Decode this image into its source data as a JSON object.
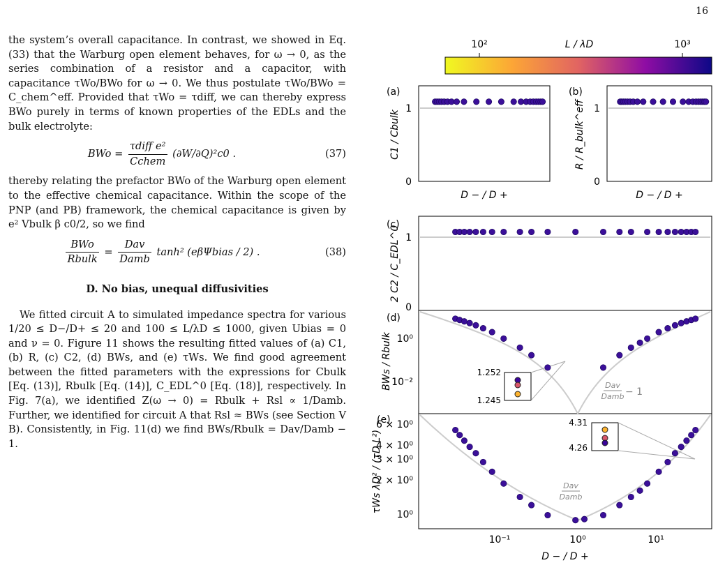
{
  "page_number": "16",
  "para1": "the system’s overall capacitance. In contrast, we showed in Eq. (33) that the Warburg open element behaves, for ω → 0, as the series combination of a resistor and a capacitor, with capacitance τWo/BWo for ω → 0. We thus postulate τWo/BWo = C_chem^eff. Provided that τWo = τdiff, we can thereby express BWo purely in terms of known properties of the EDLs and the bulk electrolyte:",
  "eq37": {
    "lhs": "BWo =",
    "num": "τdiff e²",
    "den": "Cchem",
    "rhs": "(∂W/∂Q)²c0 .",
    "number": "(37)"
  },
  "para2": "thereby relating the prefactor BWo of the Warburg open element to the effective chemical capacitance. Within the scope of the PNP (and PB) framework, the chemical capacitance is given by e² Vbulk β c0/2, so we find",
  "eq38": {
    "lnum": "BWo",
    "lden": "Rbulk",
    "mid": "=",
    "rnum": "Dav",
    "rden": "Damb",
    "rhs": "tanh² (eβΨbias / 2) .",
    "number": "(38)"
  },
  "section_title": "D.   No bias, unequal diffusivities",
  "para3": "We fitted circuit A to simulated impedance spectra for various 1/20 ≤ D−/D+ ≤ 20 and 100 ≤ L/λD ≤ 1000, given Ubias = 0 and ν = 0. Figure 11 shows the resulting fitted values of (a) C1, (b) R, (c) C2, (d) BWs, and (e) τWs. We find good agreement between the fitted parameters with the expressions for Cbulk [Eq. (13)], Rbulk [Eq. (14)], C_EDL^0 [Eq. (18)], respectively. In Fig. 7(a), we identified Z(ω → 0) = Rbulk + Rsl ∝ 1/Damb. Further, we identified for circuit A that Rsl ≈ BWs (see Section V B). Consistently, in Fig. 11(d) we find BWs/Rbulk = Dav/Damb − 1.",
  "colorbar": {
    "label": "L / λD",
    "tick_low": "10²",
    "tick_high": "10³"
  },
  "panels": {
    "a": {
      "label": "(a)",
      "ylabel": "C1 / Cbulk",
      "xlabel": "D − / D +",
      "yticks": [
        "0",
        "1"
      ]
    },
    "b": {
      "label": "(b)",
      "ylabel": "R / R_bulk^eff",
      "xlabel": "D − / D +",
      "yticks": [
        "0",
        "1"
      ]
    },
    "c": {
      "label": "(c)",
      "ylabel": "2 C2 / C_EDL^0",
      "yticks": [
        "0",
        "1"
      ]
    },
    "d": {
      "label": "(d)",
      "ylabel": "BWs / Rbulk",
      "yticks": [
        "10⁰",
        "10⁻²"
      ],
      "inset_top": "1.252",
      "inset_bottom": "1.245",
      "curve_label_num": "Dav",
      "curve_label_den": "Damb",
      "curve_label_suffix": "− 1"
    },
    "e": {
      "label": "(e)",
      "ylabel": "τWs λD² / (τD L²)",
      "yticks": [
        "6 × 10⁰",
        "4 × 10⁰",
        "3 × 10⁰",
        "2 × 10⁰",
        "10⁰"
      ],
      "inset_top": "4.31",
      "inset_bottom": "4.26",
      "curve_label_num": "Dav",
      "curve_label_den": "Damb"
    }
  },
  "x_axis": {
    "label": "D − / D +",
    "ticks": [
      "10⁻¹",
      "10⁰",
      "10¹"
    ]
  },
  "chart_data": [
    {
      "type": "scatter",
      "panel": "a",
      "xscale": "log",
      "x": [
        0.05,
        0.0556,
        0.0625,
        0.0714,
        0.0833,
        0.1,
        0.125,
        0.1667,
        0.25,
        0.5,
        1,
        2,
        4,
        6,
        8,
        10,
        12,
        14,
        16,
        18,
        20
      ],
      "y": [
        1,
        1,
        1,
        1,
        1,
        1,
        1,
        1,
        1,
        1,
        1,
        1,
        1,
        1,
        1,
        1,
        1,
        1,
        1,
        1,
        1
      ],
      "ylim": [
        0,
        1.2
      ]
    },
    {
      "type": "scatter",
      "panel": "b",
      "xscale": "log",
      "x": [
        0.05,
        0.0556,
        0.0625,
        0.0714,
        0.0833,
        0.1,
        0.125,
        0.1667,
        0.25,
        0.5,
        1,
        2,
        4,
        6,
        8,
        10,
        12,
        14,
        16,
        18,
        20
      ],
      "y": [
        1,
        1,
        1,
        1,
        1,
        1,
        1,
        1,
        1,
        1,
        1,
        1,
        1,
        1,
        1,
        1,
        1,
        1,
        1,
        1,
        1
      ],
      "ylim": [
        0,
        1.2
      ]
    },
    {
      "type": "scatter",
      "panel": "c",
      "xscale": "log",
      "x": [
        0.05,
        0.0556,
        0.0625,
        0.0714,
        0.0833,
        0.1,
        0.125,
        0.1667,
        0.25,
        0.3333,
        0.5,
        1,
        2,
        3,
        4,
        6,
        8,
        10,
        12,
        14,
        16,
        18,
        20
      ],
      "y": [
        1,
        1,
        1,
        1,
        1,
        1,
        1,
        1,
        1,
        1,
        1,
        1,
        1,
        1,
        1,
        1,
        1,
        1,
        1,
        1,
        1,
        1,
        1
      ],
      "ylim": [
        0,
        1.2
      ]
    },
    {
      "type": "scatter",
      "panel": "d",
      "xscale": "log",
      "yscale": "log",
      "x": [
        0.05,
        0.0556,
        0.0625,
        0.0714,
        0.0833,
        0.1,
        0.125,
        0.1667,
        0.25,
        0.3333,
        0.5,
        2,
        3,
        4,
        5,
        6,
        8,
        10,
        12,
        14,
        16,
        18,
        20
      ],
      "y": [
        4.5,
        4.0,
        3.5,
        2.95,
        2.4,
        1.8,
        1.25,
        0.67,
        0.28,
        0.136,
        0.0417,
        0.0417,
        0.136,
        0.28,
        0.45,
        0.67,
        1.25,
        1.8,
        2.4,
        2.95,
        3.5,
        4.0,
        4.5
      ],
      "ylim": [
        0.0005,
        10
      ]
    },
    {
      "type": "scatter",
      "panel": "e",
      "xscale": "log",
      "yscale": "log",
      "x": [
        0.05,
        0.0556,
        0.0625,
        0.0714,
        0.0833,
        0.1,
        0.125,
        0.1667,
        0.25,
        0.3333,
        0.5,
        1,
        1.25,
        2,
        3,
        4,
        5,
        6,
        8,
        10,
        12,
        14,
        16,
        18,
        20
      ],
      "y": [
        5.5,
        5.0,
        4.5,
        4.0,
        3.55,
        3.0,
        2.5,
        2.0,
        1.55,
        1.33,
        1.1,
        1.0,
        1.02,
        1.1,
        1.33,
        1.55,
        1.75,
        2.0,
        2.5,
        3.0,
        3.55,
        4.0,
        4.5,
        5.0,
        5.5
      ],
      "ylim": [
        0.85,
        7.5
      ]
    }
  ]
}
